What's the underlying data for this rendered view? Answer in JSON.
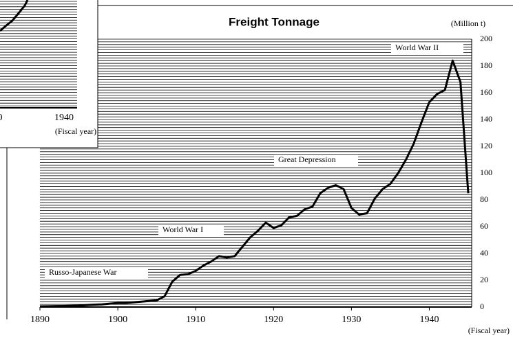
{
  "chart_data": {
    "type": "line",
    "title": "Freight Tonnage",
    "y_axis_label": "(Million t)",
    "x_axis_label": "(Fiscal year)",
    "x": [
      1890,
      1891,
      1892,
      1893,
      1894,
      1895,
      1896,
      1897,
      1898,
      1899,
      1900,
      1901,
      1902,
      1903,
      1904,
      1905,
      1906,
      1907,
      1908,
      1909,
      1910,
      1911,
      1912,
      1913,
      1914,
      1915,
      1916,
      1917,
      1918,
      1919,
      1920,
      1921,
      1922,
      1923,
      1924,
      1925,
      1926,
      1927,
      1928,
      1929,
      1930,
      1931,
      1932,
      1933,
      1934,
      1935,
      1936,
      1937,
      1938,
      1939,
      1940,
      1941,
      1942,
      1943,
      1944,
      1945
    ],
    "series": [
      {
        "color": "#000000",
        "values": [
          0.5,
          0.6,
          0.7,
          0.8,
          0.9,
          1,
          1.5,
          1.8,
          2,
          2.5,
          3,
          3,
          3.5,
          4,
          4.5,
          5,
          8,
          19,
          24,
          24.5,
          27,
          31,
          34,
          38,
          37,
          38,
          45,
          52,
          57,
          63,
          59,
          61,
          67,
          68,
          73,
          75,
          85,
          89,
          91,
          88,
          74,
          69,
          70,
          81,
          88,
          92,
          100,
          110,
          122,
          138,
          153,
          159,
          162,
          184,
          168,
          85
        ]
      }
    ],
    "xlim": [
      1890,
      1945
    ],
    "xticks": [
      1890,
      1900,
      1910,
      1920,
      1930,
      1940
    ],
    "ylim": [
      0,
      200
    ],
    "yticks": [
      0,
      20,
      40,
      60,
      80,
      100,
      120,
      140,
      160,
      180,
      200
    ],
    "grid": true,
    "annotations": [
      "World War II",
      "Great Depression",
      "World War I",
      "Russo-Japanese War"
    ]
  },
  "inset": {
    "x_tick_label": "1940",
    "x_tick_partial": "0",
    "x_axis_label": "(Fiscal year)"
  }
}
